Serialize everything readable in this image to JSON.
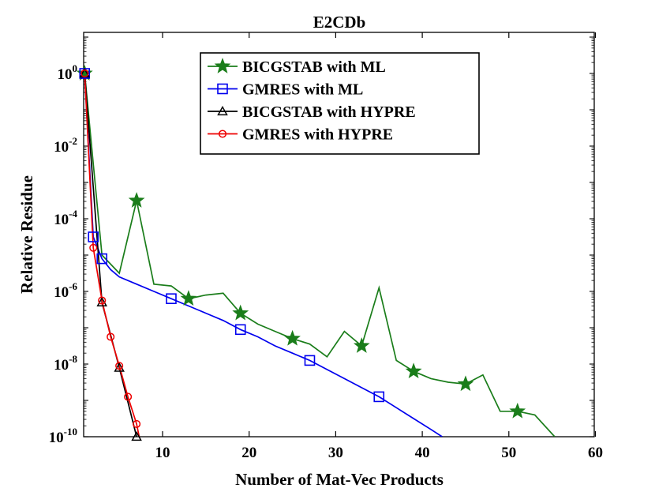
{
  "chart_data": {
    "type": "line",
    "title": "E2CDb",
    "xlabel": "Number of Mat-Vec Products",
    "ylabel": "Relative Residue",
    "xlim": [
      1,
      60
    ],
    "ylim_log10": [
      -10,
      1
    ],
    "x_ticks": [
      10,
      20,
      30,
      40,
      50,
      60
    ],
    "y_ticks": [
      {
        "base": "10",
        "exp": "0",
        "value": 0
      },
      {
        "base": "10",
        "exp": "-2",
        "value": -2
      },
      {
        "base": "10",
        "exp": "-4",
        "value": -4
      },
      {
        "base": "10",
        "exp": "-6",
        "value": -6
      },
      {
        "base": "10",
        "exp": "-8",
        "value": -8
      },
      {
        "base": "10",
        "exp": "-10",
        "value": -10
      }
    ],
    "legend_position": "top-center",
    "series": [
      {
        "name": "BICGSTAB with ML",
        "color": "#1a7d1a",
        "marker": "star",
        "x": [
          1,
          3,
          5,
          7,
          9,
          11,
          13,
          15,
          17,
          19,
          21,
          23,
          25,
          27,
          29,
          31,
          33,
          35,
          37,
          39,
          41,
          43,
          45,
          47,
          49,
          51,
          53,
          55.3
        ],
        "log10y": [
          0,
          -5.0,
          -5.5,
          -3.5,
          -5.8,
          -5.85,
          -6.2,
          -6.1,
          -6.05,
          -6.6,
          -6.9,
          -7.1,
          -7.3,
          -7.45,
          -7.8,
          -7.1,
          -7.5,
          -5.9,
          -7.9,
          -8.2,
          -8.4,
          -8.5,
          -8.55,
          -8.3,
          -9.3,
          -9.3,
          -9.4,
          -10.0
        ],
        "marker_x": [
          1,
          7,
          13,
          19,
          25,
          33,
          39,
          45,
          51
        ]
      },
      {
        "name": "GMRES with ML",
        "color": "#0000ee",
        "marker": "square",
        "x": [
          1,
          2,
          3,
          4,
          5,
          7,
          9,
          11,
          13,
          15,
          17,
          19,
          21,
          23,
          25,
          27,
          29,
          31,
          33,
          35,
          37,
          39,
          41,
          42.3
        ],
        "log10y": [
          0,
          -4.5,
          -5.1,
          -5.4,
          -5.6,
          -5.8,
          -6.0,
          -6.2,
          -6.4,
          -6.6,
          -6.8,
          -7.05,
          -7.25,
          -7.5,
          -7.7,
          -7.9,
          -8.15,
          -8.4,
          -8.65,
          -8.9,
          -9.2,
          -9.5,
          -9.8,
          -10.0
        ],
        "marker_x": [
          1,
          2,
          3,
          11,
          19,
          27,
          35
        ]
      },
      {
        "name": "BICGSTAB with HYPRE",
        "color": "#000000",
        "marker": "triangle",
        "x": [
          1,
          3,
          5,
          7
        ],
        "log10y": [
          0,
          -6.3,
          -8.1,
          -10.0
        ],
        "marker_x": [
          1,
          3,
          5,
          7
        ]
      },
      {
        "name": "GMRES with HYPRE",
        "color": "#ee0000",
        "marker": "circle",
        "x": [
          1,
          2,
          3,
          4,
          5,
          6,
          7,
          7.3
        ],
        "log10y": [
          0,
          -4.8,
          -6.25,
          -7.25,
          -8.05,
          -8.9,
          -9.65,
          -10.0
        ],
        "marker_x": [
          1,
          2,
          3,
          4,
          5,
          6,
          7
        ]
      }
    ]
  }
}
